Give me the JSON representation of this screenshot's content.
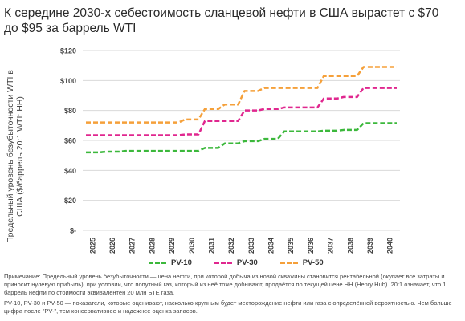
{
  "title": "К середине 2030-х себестоимость сланцевой нефти в США вырастет с $70 до $95 за баррель WTI",
  "ylabel": "Предельный уровень безубыточности WTI в США ($/баррель 20:1 WTI: HH)",
  "notes": {
    "line1": "Примечание: Предельный уровень безубыточности — цена нефти, при которой добыча из новой скважины становится рентабельной (окупает все затраты и приносит нулевую прибыль), при условии, что попутный газ, который из неё тоже добывают, продаётся по текущей цене HH (Henry Hub). 20:1 означает, что 1 баррель нефти по стоимости эквивалентен 20 млн БТЕ газа.",
    "line2": "PV-10, PV-30 и PV-50 — показатели, которые оценивают, насколько крупным будет месторождение нефти или газа с определённой вероятностью. Чем больше цифра после \"PV-\", тем консервативнее и надежнее оценка запасов."
  },
  "colors": {
    "pv10": "#3cb83c",
    "pv30": "#e0278f",
    "pv50": "#f5a03a"
  },
  "chart_data": {
    "type": "line",
    "title": "К середине 2030-х себестоимость сланцевой нефти в США вырастет с $70 до $95 за баррель WTI",
    "ylabel": "Предельный уровень безубыточности WTI в США ($/баррель 20:1 WTI: HH)",
    "xlabel": "",
    "categories": [
      "2025",
      "2026",
      "2027",
      "2028",
      "2029",
      "2030",
      "2031",
      "2032",
      "2033",
      "2034",
      "2035",
      "2036",
      "2037",
      "2038",
      "2039",
      "2040"
    ],
    "y_tick_labels": [
      "$-",
      "$20",
      "$40",
      "$60",
      "$80",
      "$100",
      "$120"
    ],
    "ylim": [
      0,
      120
    ],
    "grid": true,
    "legend_position": "bottom",
    "series": [
      {
        "name": "PV-10",
        "values": [
          52,
          52.5,
          53,
          53,
          53,
          53,
          55,
          58,
          59.5,
          61,
          66,
          66,
          66.5,
          67,
          71.5,
          71.5
        ]
      },
      {
        "name": "PV-30",
        "values": [
          63.5,
          63.5,
          63.5,
          63.5,
          63.5,
          64,
          73,
          73,
          80,
          81,
          82,
          82,
          88,
          89,
          95,
          95
        ]
      },
      {
        "name": "PV-50",
        "values": [
          72,
          72,
          72,
          72,
          72,
          74,
          81,
          84,
          93,
          95,
          95,
          95,
          103,
          103,
          109,
          109
        ]
      }
    ]
  }
}
